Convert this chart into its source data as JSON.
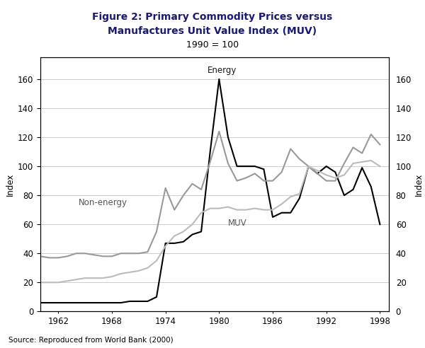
{
  "title_line1": "Figure 2: Primary Commodity Prices versus",
  "title_line2": "Manufactures Unit Value Index (MUV)",
  "subtitle": "1990 = 100",
  "ylabel_left": "Index",
  "ylabel_right": "Index",
  "source": "Source: Reproduced from World Bank (2000)",
  "title_color": "#1a1a6e",
  "background_color": "#ffffff",
  "ylim": [
    0,
    175
  ],
  "yticks": [
    0,
    20,
    40,
    60,
    80,
    100,
    120,
    140,
    160
  ],
  "xlim": [
    1960,
    1999
  ],
  "xticks": [
    1962,
    1968,
    1974,
    1980,
    1986,
    1992,
    1998
  ],
  "grid_color": "#cccccc",
  "energy_color": "#000000",
  "non_energy_color": "#999999",
  "muv_color": "#bbbbbb",
  "energy_label": "Energy",
  "non_energy_label": "Non-energy",
  "muv_label": "MUV",
  "years": [
    1960,
    1961,
    1962,
    1963,
    1964,
    1965,
    1966,
    1967,
    1968,
    1969,
    1970,
    1971,
    1972,
    1973,
    1974,
    1975,
    1976,
    1977,
    1978,
    1979,
    1980,
    1981,
    1982,
    1983,
    1984,
    1985,
    1986,
    1987,
    1988,
    1989,
    1990,
    1991,
    1992,
    1993,
    1994,
    1995,
    1996,
    1997,
    1998
  ],
  "energy": [
    6,
    6,
    6,
    6,
    6,
    6,
    6,
    6,
    6,
    6,
    7,
    7,
    7,
    10,
    47,
    47,
    48,
    53,
    55,
    110,
    160,
    120,
    100,
    100,
    100,
    98,
    65,
    68,
    68,
    78,
    100,
    95,
    100,
    96,
    80,
    84,
    99,
    86,
    60
  ],
  "non_energy": [
    38,
    37,
    37,
    38,
    40,
    40,
    39,
    38,
    38,
    40,
    40,
    40,
    41,
    55,
    85,
    70,
    80,
    88,
    84,
    103,
    124,
    102,
    90,
    92,
    95,
    90,
    90,
    96,
    112,
    105,
    100,
    95,
    90,
    90,
    102,
    113,
    109,
    122,
    115
  ],
  "muv": [
    20,
    20,
    20,
    21,
    22,
    23,
    23,
    23,
    24,
    26,
    27,
    28,
    30,
    35,
    45,
    52,
    55,
    60,
    68,
    71,
    71,
    72,
    70,
    70,
    71,
    70,
    70,
    74,
    79,
    81,
    100,
    97,
    94,
    92,
    94,
    102,
    103,
    104,
    100
  ],
  "energy_ann_x": 1980.3,
  "energy_ann_y": 163,
  "non_energy_ann_x": 1967.0,
  "non_energy_ann_y": 72,
  "muv_ann_x": 1981.0,
  "muv_ann_y": 64
}
